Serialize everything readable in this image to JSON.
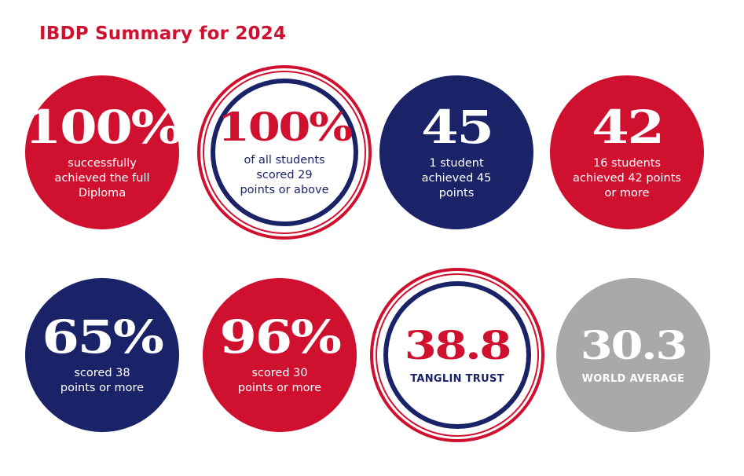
{
  "title": "IBDP Summary for 2024",
  "stats": [
    {
      "value": "100%",
      "text": "successfully achieved the full Diploma"
    },
    {
      "value": "100%",
      "text": "of all students scored 29 points or above"
    },
    {
      "value": "45",
      "text": "1 student achieved 45 points"
    },
    {
      "value": "42",
      "text": "16 students achieved 42 points or more"
    },
    {
      "value": "65%",
      "text": "scored 38 points or more"
    },
    {
      "value": "96%",
      "text": "scored 30 points or more"
    },
    {
      "value": "38.8",
      "text": "TANGLIN TRUST"
    },
    {
      "value": "30.3",
      "text": "WORLD AVERAGE"
    }
  ],
  "colors": {
    "red": "#d0102f",
    "navy": "#1b2368",
    "grey": "#a9a8aa"
  }
}
